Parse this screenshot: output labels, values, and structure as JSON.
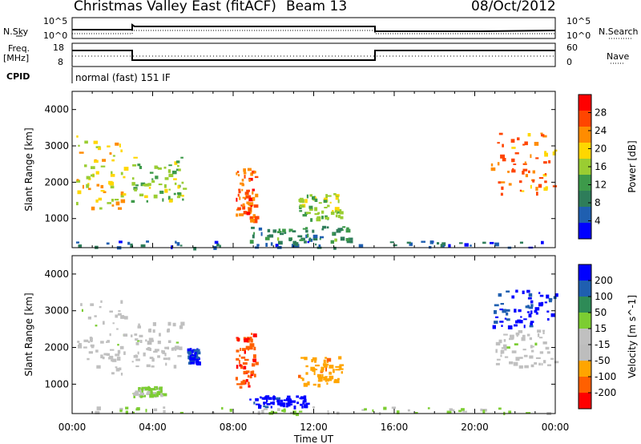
{
  "header": {
    "title": "Christmas Valley East (fitACF)",
    "beam": "Beam 13",
    "date": "08/Oct/2012"
  },
  "status_panels": {
    "nsky_label": "N.Sky",
    "nsearch_label": "N.Search",
    "freq_label_top": "Freq.",
    "freq_label_unit": "[MHz]",
    "nave_label": "Nave",
    "cpid_label": "CPID",
    "cpid_value": "normal (fast) 151 IF",
    "noise_ticks_left": [
      "10^5",
      "10^0"
    ],
    "noise_ticks_right": [
      "10^5",
      "10^0"
    ],
    "freq_ticks_left": [
      "18",
      "8"
    ],
    "nave_ticks_right": [
      "60",
      "0"
    ]
  },
  "colors": {
    "power_scale": [
      "#0000ff",
      "#1f5fb0",
      "#2e7d5a",
      "#3d9a4a",
      "#9acd32",
      "#ffd700",
      "#ff8c00",
      "#ff4500",
      "#ff0000"
    ],
    "velocity_scale": [
      "#0000ff",
      "#1f5fb0",
      "#2e8b57",
      "#7ccd32",
      "#c0c0c0",
      "#bdbdbd",
      "#ffa500",
      "#ff6000",
      "#ff0000"
    ]
  },
  "chart_data": [
    {
      "type": "heatmap",
      "panel": "power",
      "ylabel": "Slant Range [km]",
      "yticks": [
        "1000",
        "2000",
        "3000",
        "4000"
      ],
      "ylim": [
        200,
        4500
      ],
      "xlim_hours": [
        0,
        24
      ],
      "colorbar": {
        "label": "Power [dB]",
        "ticks": [
          "4",
          "8",
          "12",
          "16",
          "20",
          "24",
          "28"
        ],
        "range": [
          0,
          30
        ]
      },
      "regions": [
        {
          "t0": 0.2,
          "t1": 2.6,
          "r0": 1300,
          "r1": 3300,
          "value": 18
        },
        {
          "t0": 2.9,
          "t1": 5.6,
          "r0": 1500,
          "r1": 2700,
          "value": 14
        },
        {
          "t0": 8.1,
          "t1": 9.1,
          "r0": 900,
          "r1": 2400,
          "value": 24
        },
        {
          "t0": 11.2,
          "t1": 13.4,
          "r0": 1000,
          "r1": 1700,
          "value": 14
        },
        {
          "t0": 8.8,
          "t1": 13.8,
          "r0": 400,
          "r1": 800,
          "value": 10
        },
        {
          "t0": 20.8,
          "t1": 24.0,
          "r0": 1700,
          "r1": 3500,
          "value": 22
        },
        {
          "t0": 0.0,
          "t1": 24.0,
          "r0": 220,
          "r1": 400,
          "value": 6
        }
      ]
    },
    {
      "type": "heatmap",
      "panel": "velocity",
      "ylabel": "Slant Range [km]",
      "yticks": [
        "1000",
        "2000",
        "3000",
        "4000"
      ],
      "ylim": [
        200,
        4500
      ],
      "xlim_hours": [
        0,
        24
      ],
      "xticks": [
        "00:00",
        "04:00",
        "08:00",
        "12:00",
        "16:00",
        "20:00",
        "00:00"
      ],
      "xlabel": "Time UT",
      "colorbar": {
        "label": "Velocity [m s^-1]",
        "ticks": [
          "200",
          "100",
          "50",
          "15",
          "-15",
          "-50",
          "-100",
          "-200"
        ],
        "range": [
          -250,
          250
        ]
      },
      "regions": [
        {
          "t0": 0.2,
          "t1": 2.6,
          "r0": 1300,
          "r1": 3300,
          "value": 0
        },
        {
          "t0": 2.9,
          "t1": 5.6,
          "r0": 1500,
          "r1": 2700,
          "value": 0
        },
        {
          "t0": 5.7,
          "t1": 6.2,
          "r0": 1600,
          "r1": 2000,
          "value": 200
        },
        {
          "t0": 8.1,
          "t1": 9.1,
          "r0": 900,
          "r1": 2400,
          "value": -180
        },
        {
          "t0": 11.2,
          "t1": 13.4,
          "r0": 1000,
          "r1": 1800,
          "value": -120
        },
        {
          "t0": 8.8,
          "t1": 11.6,
          "r0": 400,
          "r1": 700,
          "value": 220
        },
        {
          "t0": 3.0,
          "t1": 4.5,
          "r0": 700,
          "r1": 950,
          "value": 40
        },
        {
          "t0": 20.8,
          "t1": 24.0,
          "r0": 2600,
          "r1": 3600,
          "value": 200
        },
        {
          "t0": 21.0,
          "t1": 24.0,
          "r0": 1500,
          "r1": 2500,
          "value": 0
        },
        {
          "t0": 0.0,
          "t1": 24.0,
          "r0": 220,
          "r1": 400,
          "value": 30
        }
      ]
    }
  ]
}
